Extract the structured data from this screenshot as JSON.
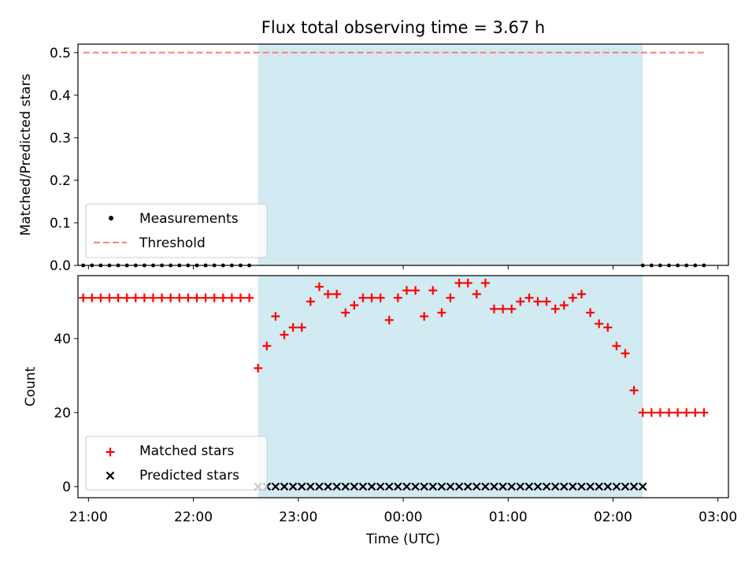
{
  "chart_data": [
    {
      "type": "scatter",
      "title": "Flux total observing time = 3.67 h",
      "ylabel": "Matched/Predicted stars",
      "xlabel": "",
      "ylim": [
        0,
        0.52
      ],
      "xlim": [
        "20:54",
        "03:06"
      ],
      "yticks": [
        "0.0",
        "0.1",
        "0.2",
        "0.3",
        "0.4",
        "0.5"
      ],
      "ytick_values": [
        0,
        0.1,
        0.2,
        0.3,
        0.4,
        0.5
      ],
      "shaded_region": {
        "start": "22:37",
        "end": "02:17",
        "color": "#add8e6"
      },
      "threshold": {
        "value": 0.5,
        "from": "20:57",
        "to": "02:52",
        "color": "#ff7f7f"
      },
      "legend": {
        "position": "lower-left",
        "entries": [
          {
            "label": "Measurements",
            "marker": "dot",
            "color": "#000000"
          },
          {
            "label": "Threshold",
            "marker": "dashed-line",
            "color": "#ff7f7f"
          }
        ]
      },
      "series": [
        {
          "name": "Measurements",
          "x": [
            "20:57",
            "21:02",
            "21:07",
            "21:12",
            "21:17",
            "21:22",
            "21:27",
            "21:32",
            "21:37",
            "21:42",
            "21:47",
            "21:52",
            "21:57",
            "22:02",
            "22:07",
            "22:12",
            "22:17",
            "22:22",
            "22:27",
            "22:32",
            "02:17",
            "02:22",
            "02:27",
            "02:32",
            "02:37",
            "02:42",
            "02:47",
            "02:52"
          ],
          "y": [
            0,
            0,
            0,
            0,
            0,
            0,
            0,
            0,
            0,
            0,
            0,
            0,
            0,
            0,
            0,
            0,
            0,
            0,
            0,
            0,
            0,
            0,
            0,
            0,
            0,
            0,
            0,
            0
          ]
        }
      ]
    },
    {
      "type": "scatter",
      "ylabel": "Count",
      "xlabel": "Time (UTC)",
      "ylim": [
        -3,
        57
      ],
      "yticks": [
        "0",
        "20",
        "40"
      ],
      "ytick_values": [
        0,
        20,
        40
      ],
      "xticks": [
        "21:00",
        "22:00",
        "23:00",
        "00:00",
        "01:00",
        "02:00",
        "03:00"
      ],
      "shaded_region": {
        "start": "22:37",
        "end": "02:17",
        "color": "#add8e6"
      },
      "legend": {
        "position": "lower-left",
        "entries": [
          {
            "label": "Matched stars",
            "marker": "plus",
            "color": "#ff0000"
          },
          {
            "label": "Predicted stars",
            "marker": "x",
            "color": "#000000"
          }
        ]
      },
      "series": [
        {
          "name": "Matched stars",
          "x": [
            "20:57",
            "21:02",
            "21:07",
            "21:12",
            "21:17",
            "21:22",
            "21:27",
            "21:32",
            "21:37",
            "21:42",
            "21:47",
            "21:52",
            "21:57",
            "22:02",
            "22:07",
            "22:12",
            "22:17",
            "22:22",
            "22:27",
            "22:32",
            "22:37",
            "22:42",
            "22:47",
            "22:52",
            "22:57",
            "23:02",
            "23:07",
            "23:12",
            "23:17",
            "23:22",
            "23:27",
            "23:32",
            "23:37",
            "23:42",
            "23:47",
            "23:52",
            "23:57",
            "00:02",
            "00:07",
            "00:12",
            "00:17",
            "00:22",
            "00:27",
            "00:32",
            "00:37",
            "00:42",
            "00:47",
            "00:52",
            "00:57",
            "01:02",
            "01:07",
            "01:12",
            "01:17",
            "01:22",
            "01:27",
            "01:32",
            "01:37",
            "01:42",
            "01:47",
            "01:52",
            "01:57",
            "02:02",
            "02:07",
            "02:12",
            "02:17",
            "02:22",
            "02:27",
            "02:32",
            "02:37",
            "02:42",
            "02:47",
            "02:52"
          ],
          "y": [
            51,
            51,
            51,
            51,
            51,
            51,
            51,
            51,
            51,
            51,
            51,
            51,
            51,
            51,
            51,
            51,
            51,
            51,
            51,
            51,
            32,
            38,
            46,
            41,
            43,
            43,
            50,
            54,
            52,
            52,
            47,
            49,
            51,
            51,
            51,
            45,
            51,
            53,
            53,
            46,
            53,
            47,
            51,
            55,
            55,
            52,
            55,
            48,
            48,
            48,
            50,
            51,
            50,
            50,
            48,
            49,
            51,
            52,
            47,
            44,
            43,
            38,
            36,
            26,
            20,
            20,
            20,
            20,
            20,
            20,
            20,
            20
          ]
        },
        {
          "name": "Predicted stars",
          "x": [
            "22:37",
            "22:42",
            "22:47",
            "22:52",
            "22:57",
            "23:02",
            "23:07",
            "23:12",
            "23:17",
            "23:22",
            "23:27",
            "23:32",
            "23:37",
            "23:42",
            "23:47",
            "23:52",
            "23:57",
            "00:02",
            "00:07",
            "00:12",
            "00:17",
            "00:22",
            "00:27",
            "00:32",
            "00:37",
            "00:42",
            "00:47",
            "00:52",
            "00:57",
            "01:02",
            "01:07",
            "01:12",
            "01:17",
            "01:22",
            "01:27",
            "01:32",
            "01:37",
            "01:42",
            "01:47",
            "01:52",
            "01:57",
            "02:02",
            "02:07",
            "02:12",
            "02:17"
          ],
          "y": [
            0,
            0,
            0,
            0,
            0,
            0,
            0,
            0,
            0,
            0,
            0,
            0,
            0,
            0,
            0,
            0,
            0,
            0,
            0,
            0,
            0,
            0,
            0,
            0,
            0,
            0,
            0,
            0,
            0,
            0,
            0,
            0,
            0,
            0,
            0,
            0,
            0,
            0,
            0,
            0,
            0,
            0,
            0,
            0,
            0
          ]
        }
      ]
    }
  ]
}
